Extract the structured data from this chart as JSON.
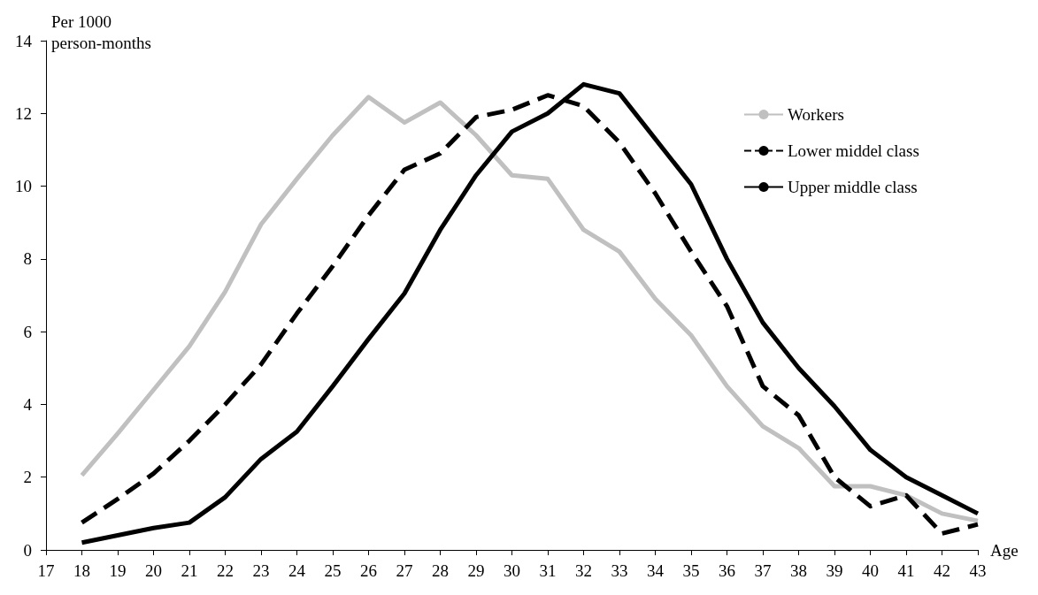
{
  "chart_data": {
    "type": "line",
    "xlabel": "Age",
    "ylabel": "Per 1000\nperson-months",
    "x": [
      18,
      19,
      20,
      21,
      22,
      23,
      24,
      25,
      26,
      27,
      28,
      29,
      30,
      31,
      32,
      33,
      34,
      35,
      36,
      37,
      38,
      39,
      40,
      41,
      42,
      43
    ],
    "xlim": [
      17,
      43
    ],
    "xticks": [
      17,
      18,
      19,
      20,
      21,
      22,
      23,
      24,
      25,
      26,
      27,
      28,
      29,
      30,
      31,
      32,
      33,
      34,
      35,
      36,
      37,
      38,
      39,
      40,
      41,
      42,
      43
    ],
    "ylim": [
      0,
      14
    ],
    "yticks": [
      0,
      2,
      4,
      6,
      8,
      10,
      12,
      14
    ],
    "grid": false,
    "legend": "top right",
    "series": [
      {
        "name": "Workers",
        "color": "#c0c0c0",
        "line_style": "solid",
        "values": [
          2.05,
          3.2,
          4.4,
          5.6,
          7.1,
          8.95,
          10.2,
          11.4,
          12.45,
          11.75,
          12.3,
          11.4,
          10.3,
          10.2,
          8.8,
          8.2,
          6.9,
          5.9,
          4.5,
          3.4,
          2.8,
          1.75,
          1.75,
          1.5,
          1.0,
          0.8
        ]
      },
      {
        "name": "Lower middel class",
        "color": "#000000",
        "line_style": "dashed",
        "values": [
          0.75,
          1.4,
          2.1,
          3.0,
          4.0,
          5.1,
          6.5,
          7.8,
          9.2,
          10.45,
          10.9,
          11.9,
          12.1,
          12.5,
          12.2,
          11.2,
          9.8,
          8.2,
          6.7,
          4.5,
          3.7,
          2.0,
          1.2,
          1.5,
          0.45,
          0.7
        ]
      },
      {
        "name": "Upper middle class",
        "color": "#000000",
        "line_style": "solid",
        "values": [
          0.2,
          0.4,
          0.6,
          0.75,
          1.45,
          2.5,
          3.25,
          4.5,
          5.8,
          7.05,
          8.8,
          10.3,
          11.5,
          12.0,
          12.8,
          12.55,
          11.3,
          10.05,
          8.0,
          6.25,
          5.0,
          3.95,
          2.75,
          2.0,
          1.5,
          1.0
        ]
      }
    ]
  }
}
